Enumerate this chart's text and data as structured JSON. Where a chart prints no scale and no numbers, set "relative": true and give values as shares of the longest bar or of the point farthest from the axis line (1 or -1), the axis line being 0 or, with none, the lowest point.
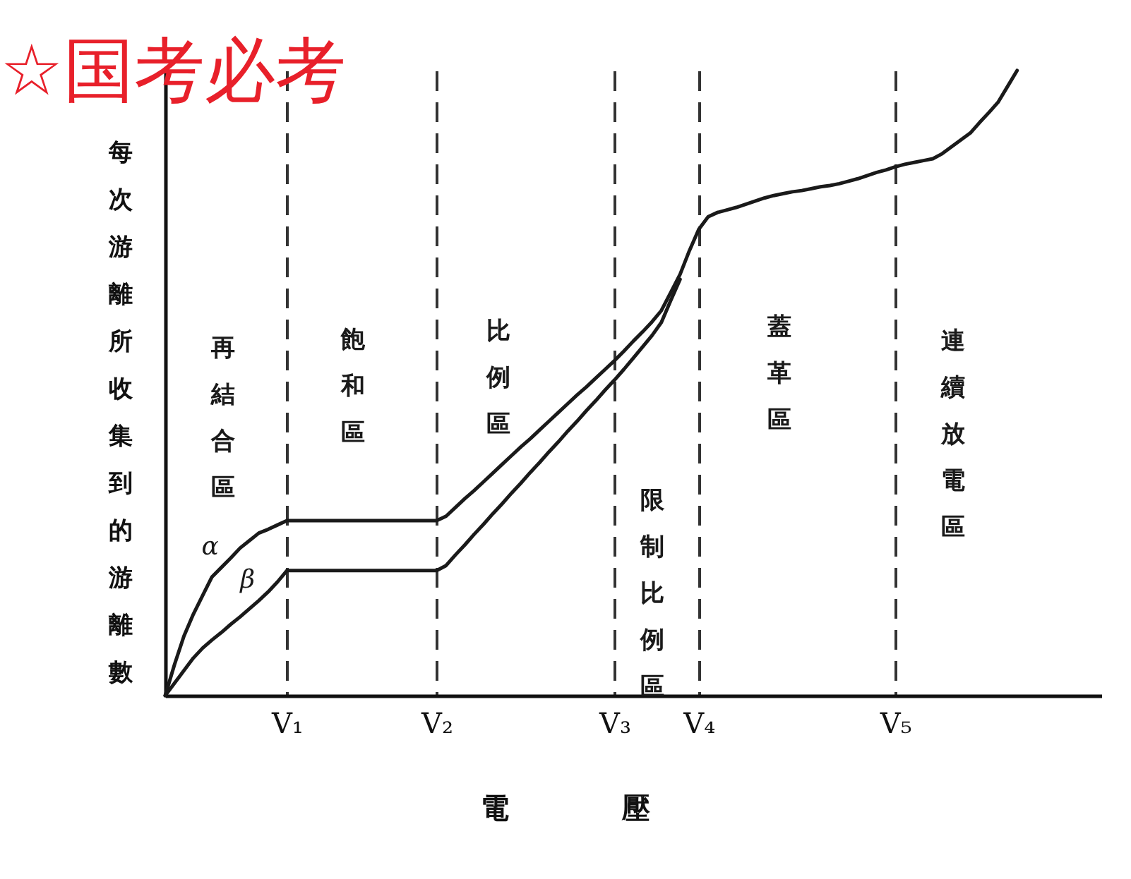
{
  "chart_data": {
    "type": "line",
    "relative": true,
    "grid": "x",
    "xlabel": "電　　　　壓",
    "ylabel": "每次游離所收集到的游離數",
    "categories": [
      null,
      null,
      null,
      null,
      null,
      null,
      null,
      null,
      null,
      null,
      null,
      null,
      null,
      "V₁",
      null,
      null,
      null,
      null,
      null,
      null,
      null,
      null,
      null,
      null,
      null,
      null,
      null,
      null,
      null,
      "V₂",
      null,
      null,
      null,
      null,
      null,
      null,
      null,
      null,
      null,
      null,
      null,
      null,
      null,
      null,
      null,
      null,
      null,
      null,
      "V₃",
      null,
      null,
      null,
      null,
      null,
      null,
      null,
      null,
      "V₄",
      null,
      null,
      null,
      null,
      null,
      null,
      null,
      null,
      null,
      null,
      null,
      null,
      null,
      null,
      null,
      null,
      null,
      null,
      null,
      null,
      "V₅",
      null,
      null,
      null,
      null,
      null,
      null,
      null,
      null,
      null,
      null,
      null,
      null,
      null,
      null,
      null,
      null,
      null,
      null,
      null,
      null,
      null,
      null
    ],
    "series": [
      {
        "name": "α",
        "color": "#1a1a1a",
        "values": [
          0,
          0.05,
          0.095,
          0.13,
          0.16,
          0.19,
          0.205,
          0.22,
          0.236,
          0.248,
          0.26,
          0.266,
          0.273,
          0.28,
          0.28,
          0.28,
          0.28,
          0.28,
          0.28,
          0.28,
          0.28,
          0.28,
          0.28,
          0.28,
          0.28,
          0.28,
          0.28,
          0.28,
          0.28,
          0.28,
          0.287,
          0.301,
          0.315,
          0.328,
          0.342,
          0.356,
          0.37,
          0.384,
          0.398,
          0.411,
          0.425,
          0.439,
          0.453,
          0.467,
          0.481,
          0.494,
          0.508,
          0.522,
          0.536,
          0.551,
          0.567,
          0.582,
          0.598,
          0.616,
          0.645,
          0.674,
          0.712,
          0.746,
          0.766,
          0.773,
          0.777,
          0.781,
          0.786,
          0.791,
          0.796,
          0.8,
          0.803,
          0.806,
          0.808,
          0.811,
          0.814,
          0.816,
          0.819,
          0.823,
          0.827,
          0.832,
          0.837,
          0.841,
          0.846,
          0.85,
          0.853,
          0.856,
          0.859,
          0.867,
          0.878,
          0.889,
          0.9,
          0.917,
          0.933,
          0.95,
          0.975,
          1,
          null,
          null,
          null,
          null,
          null,
          null,
          null,
          null,
          null
        ]
      },
      {
        "name": "β",
        "color": "#1a1a1a",
        "values": [
          0,
          0.02,
          0.04,
          0.06,
          0.076,
          0.089,
          0.101,
          0.114,
          0.126,
          0.139,
          0.152,
          0.166,
          0.182,
          0.2,
          0.2,
          0.2,
          0.2,
          0.2,
          0.2,
          0.2,
          0.2,
          0.2,
          0.2,
          0.2,
          0.2,
          0.2,
          0.2,
          0.2,
          0.2,
          0.2,
          0.208,
          0.225,
          0.241,
          0.258,
          0.274,
          0.291,
          0.307,
          0.324,
          0.34,
          0.357,
          0.373,
          0.39,
          0.406,
          0.423,
          0.439,
          0.456,
          0.472,
          0.489,
          0.505,
          0.522,
          0.54,
          0.558,
          0.576,
          0.597,
          0.632,
          0.666,
          null,
          null,
          null,
          null,
          null,
          null,
          null,
          null,
          null,
          null,
          null,
          null,
          null,
          null,
          null,
          null,
          null,
          null,
          null,
          null,
          null,
          null,
          null,
          null,
          null,
          null,
          null,
          null,
          null,
          null,
          null,
          null,
          null,
          null,
          null,
          null,
          null,
          null,
          null,
          null,
          null,
          null,
          null,
          null,
          null
        ]
      }
    ],
    "annotations": [
      "☆国考必考",
      "再結合區",
      "飽和區",
      "比例區",
      "限制比例區",
      "蓋革區",
      "連續放電區"
    ]
  }
}
